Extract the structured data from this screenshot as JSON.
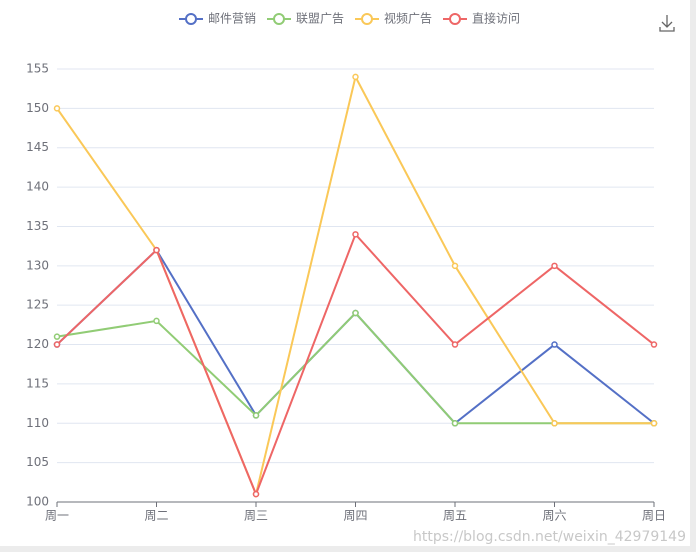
{
  "chart_data": {
    "type": "line",
    "categories": [
      "周一",
      "周二",
      "周三",
      "周四",
      "周五",
      "周六",
      "周日"
    ],
    "series": [
      {
        "name": "邮件营销",
        "color": "#5470c6",
        "values": [
          120,
          132,
          111,
          124,
          110,
          120,
          110
        ]
      },
      {
        "name": "联盟广告",
        "color": "#91cc75",
        "values": [
          121,
          123,
          111,
          124,
          110,
          110,
          110
        ]
      },
      {
        "name": "视频广告",
        "color": "#fac858",
        "values": [
          150,
          132,
          101,
          154,
          130,
          110,
          110
        ]
      },
      {
        "name": "直接访问",
        "color": "#ee6666",
        "values": [
          120,
          132,
          101,
          134,
          120,
          130,
          120
        ]
      }
    ],
    "ylim": [
      100,
      155
    ],
    "yticks": [
      100,
      105,
      110,
      115,
      120,
      125,
      130,
      135,
      140,
      145,
      150,
      155
    ],
    "grid": true,
    "legend": "top",
    "watermark": "https://blog.csdn.net/weixin_42979149"
  }
}
